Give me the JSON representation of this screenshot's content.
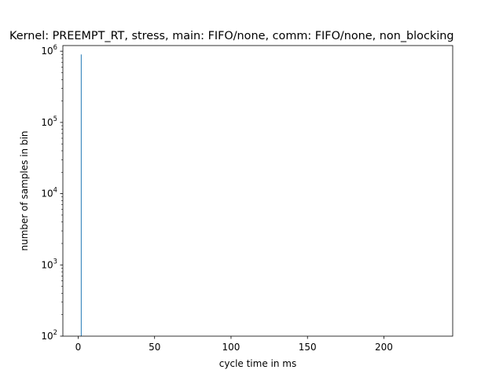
{
  "chart_data": {
    "type": "bar",
    "title": "Kernel: PREEMPT_RT, stress, main: FIFO/none, comm: FIFO/none, non_blocking",
    "xlabel": "cycle time in ms",
    "ylabel": "number of samples in bin",
    "xlim": [
      -10,
      245
    ],
    "ylim": [
      100,
      1200000
    ],
    "yscale": "log",
    "grid": false,
    "legend": "none",
    "bar_color": "#1f77b4",
    "x_ticks": [
      0,
      50,
      100,
      150,
      200
    ],
    "x_tick_labels": [
      "0",
      "50",
      "100",
      "150",
      "200"
    ],
    "y_ticks": [
      100,
      1000,
      10000,
      100000,
      1000000
    ],
    "y_tick_labels": [
      {
        "base": "10",
        "exp": "2"
      },
      {
        "base": "10",
        "exp": "3"
      },
      {
        "base": "10",
        "exp": "4"
      },
      {
        "base": "10",
        "exp": "5"
      },
      {
        "base": "10",
        "exp": "6"
      }
    ],
    "bins": [
      {
        "x": 2,
        "count": 900000
      }
    ]
  }
}
